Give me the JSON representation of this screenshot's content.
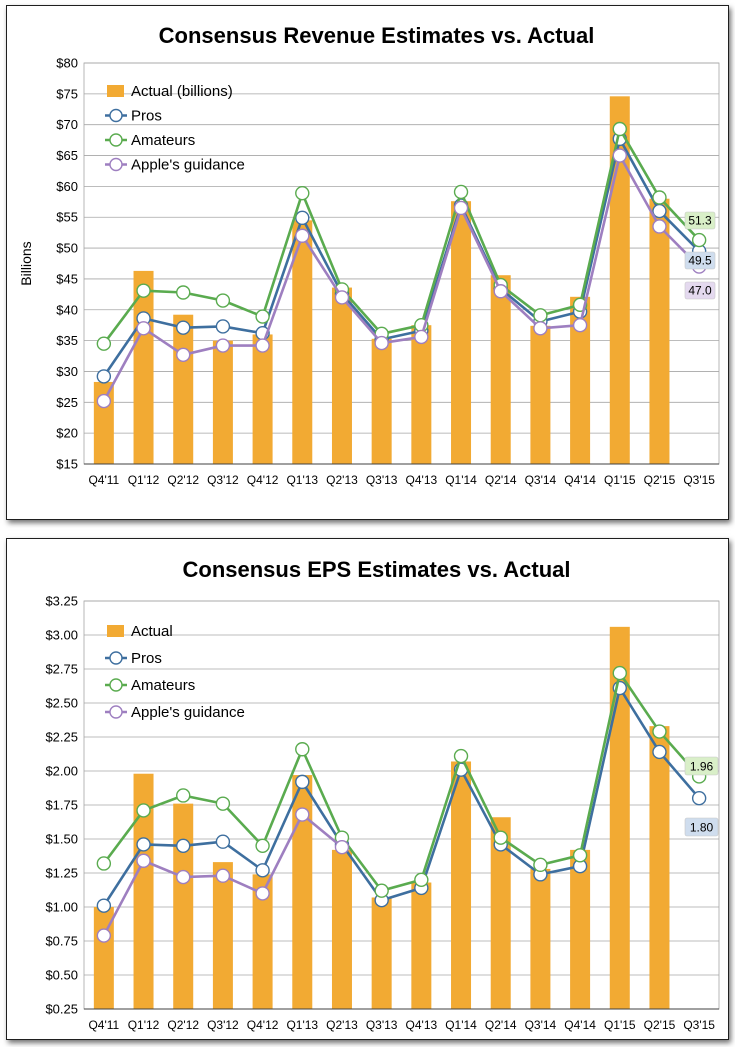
{
  "chart_data": [
    {
      "type": "bar+line",
      "title": "Consensus Revenue Estimates vs. Actual",
      "xlabel": "",
      "ylabel": "Billions",
      "ylim": [
        15,
        80
      ],
      "ytick_step": 5,
      "ytick_labels": [
        "$15",
        "$20",
        "$25",
        "$30",
        "$35",
        "$40",
        "$45",
        "$50",
        "$55",
        "$60",
        "$65",
        "$70",
        "$75",
        "$80"
      ],
      "grid": true,
      "legend_position": "top-left",
      "categories": [
        "Q4'11",
        "Q1'12",
        "Q2'12",
        "Q3'12",
        "Q4'12",
        "Q1'13",
        "Q2'13",
        "Q3'13",
        "Q4'13",
        "Q1'14",
        "Q2'14",
        "Q3'14",
        "Q4'14",
        "Q1'15",
        "Q2'15",
        "Q3'15"
      ],
      "bars": {
        "name": "Actual (billions)",
        "color": "#f2aa33",
        "values": [
          28.3,
          46.3,
          39.2,
          35.0,
          36.0,
          54.5,
          43.6,
          35.3,
          37.5,
          57.6,
          45.6,
          37.4,
          42.1,
          74.6,
          58.0,
          null
        ]
      },
      "series": [
        {
          "name": "Pros",
          "color": "#3e6f9f",
          "values": [
            29.2,
            38.6,
            37.1,
            37.3,
            36.2,
            54.9,
            42.6,
            35.2,
            36.6,
            56.9,
            43.4,
            38.1,
            39.7,
            67.7,
            56.0,
            49.5
          ]
        },
        {
          "name": "Amateurs",
          "color": "#5aab4f",
          "values": [
            34.5,
            43.1,
            42.8,
            41.5,
            38.9,
            58.9,
            43.3,
            36.1,
            37.5,
            59.1,
            44.0,
            39.1,
            40.8,
            69.3,
            58.2,
            51.3
          ]
        },
        {
          "name": "Apple's guidance",
          "color": "#9e7fc0",
          "values": [
            25.2,
            37.0,
            32.7,
            34.2,
            34.2,
            52.0,
            42.0,
            34.6,
            35.6,
            56.5,
            43.0,
            37.0,
            37.5,
            65.0,
            53.5,
            47.0
          ]
        }
      ],
      "annotations": [
        {
          "text": "51.3",
          "series": "Amateurs",
          "bg": "#d9efc8"
        },
        {
          "text": "49.5",
          "series": "Pros",
          "bg": "#cfddee"
        },
        {
          "text": "47.0",
          "series": "Apple's guidance",
          "bg": "#e4d9ef"
        }
      ]
    },
    {
      "type": "bar+line",
      "title": "Consensus EPS Estimates vs. Actual",
      "xlabel": "",
      "ylabel": "",
      "ylim": [
        0.25,
        3.25
      ],
      "ytick_step": 0.25,
      "ytick_labels": [
        "$0.25",
        "$0.50",
        "$0.75",
        "$1.00",
        "$1.25",
        "$1.50",
        "$1.75",
        "$2.00",
        "$2.25",
        "$2.50",
        "$2.75",
        "$3.00",
        "$3.25"
      ],
      "grid": true,
      "legend_position": "top-left",
      "categories": [
        "Q4'11",
        "Q1'12",
        "Q2'12",
        "Q3'12",
        "Q4'12",
        "Q1'13",
        "Q2'13",
        "Q3'13",
        "Q4'13",
        "Q1'14",
        "Q2'14",
        "Q3'14",
        "Q4'14",
        "Q1'15",
        "Q2'15",
        "Q3'15"
      ],
      "bars": {
        "name": "Actual",
        "color": "#f2aa33",
        "values": [
          1.0,
          1.98,
          1.76,
          1.33,
          1.24,
          1.97,
          1.42,
          1.07,
          1.18,
          2.07,
          1.66,
          1.28,
          1.42,
          3.06,
          2.33,
          null
        ]
      },
      "series": [
        {
          "name": "Pros",
          "color": "#3e6f9f",
          "values": [
            1.01,
            1.46,
            1.45,
            1.48,
            1.27,
            1.92,
            1.46,
            1.05,
            1.14,
            2.01,
            1.46,
            1.24,
            1.3,
            2.61,
            2.14,
            1.8
          ]
        },
        {
          "name": "Amateurs",
          "color": "#5aab4f",
          "values": [
            1.32,
            1.71,
            1.82,
            1.76,
            1.45,
            2.16,
            1.51,
            1.12,
            1.2,
            2.11,
            1.51,
            1.31,
            1.38,
            2.72,
            2.29,
            1.96
          ]
        },
        {
          "name": "Apple's guidance",
          "color": "#9e7fc0",
          "values": [
            0.79,
            1.34,
            1.22,
            1.23,
            1.1,
            1.68,
            1.44,
            null,
            null,
            null,
            null,
            null,
            null,
            null,
            null,
            null
          ]
        }
      ],
      "annotations": [
        {
          "text": "1.96",
          "series": "Amateurs",
          "bg": "#d9efc8"
        },
        {
          "text": "1.80",
          "series": "Pros",
          "bg": "#cfddee"
        }
      ]
    }
  ]
}
